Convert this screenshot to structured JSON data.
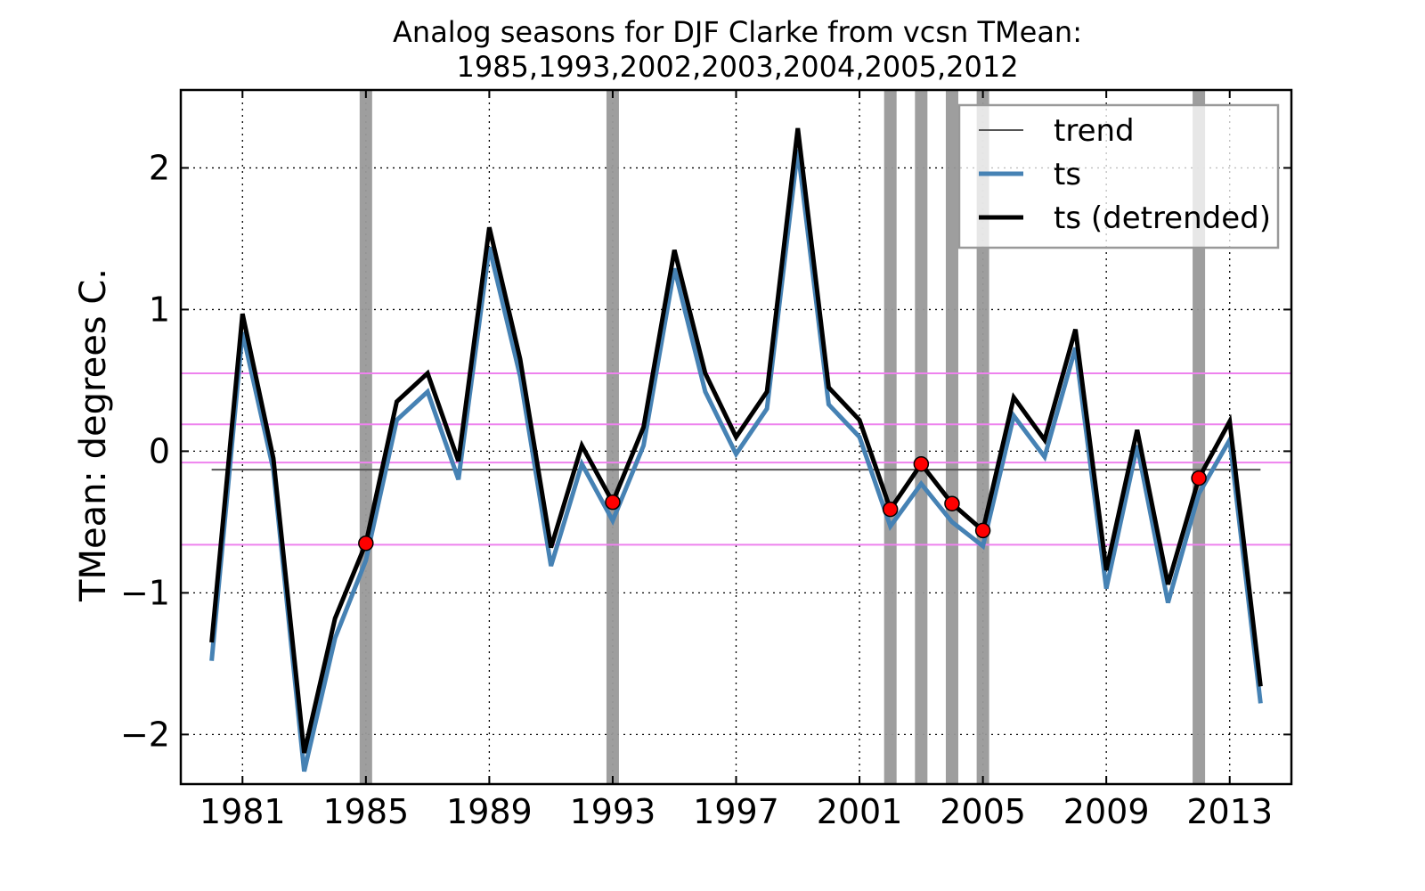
{
  "chart_data": {
    "type": "line",
    "title": "Analog seasons for DJF Clarke from vcsn TMean:",
    "subtitle": "1985,1993,2002,2003,2004,2005,2012",
    "xlabel": "",
    "ylabel": "TMean: degrees C.",
    "xlim": [
      1979.0,
      2015.0
    ],
    "ylim": [
      -2.35,
      2.55
    ],
    "xticks": [
      1981,
      1985,
      1989,
      1993,
      1997,
      2001,
      2005,
      2009,
      2013
    ],
    "xtick_labels": [
      "1981",
      "1985",
      "1989",
      "1993",
      "1997",
      "2001",
      "2005",
      "2009",
      "2013"
    ],
    "yticks": [
      -2,
      -1,
      0,
      1,
      2
    ],
    "ytick_labels": [
      "−2",
      "−1",
      "0",
      "1",
      "2"
    ],
    "grid": true,
    "legend": "top-right",
    "x": [
      1980,
      1981,
      1982,
      1983,
      1984,
      1985,
      1986,
      1987,
      1988,
      1989,
      1990,
      1991,
      1992,
      1993,
      1994,
      1995,
      1996,
      1997,
      1998,
      1999,
      2000,
      2001,
      2002,
      2003,
      2004,
      2005,
      2006,
      2007,
      2008,
      2009,
      2010,
      2011,
      2012,
      2013,
      2014
    ],
    "series": [
      {
        "name": "trend",
        "color": "#555555",
        "x": [
          1980,
          2014
        ],
        "values": [
          -0.13,
          -0.13
        ]
      },
      {
        "name": "ts",
        "color": "#4682b4",
        "values": [
          -1.48,
          0.84,
          -0.13,
          -2.26,
          -1.32,
          -0.77,
          0.22,
          0.42,
          -0.2,
          1.44,
          0.53,
          -0.81,
          -0.09,
          -0.49,
          0.04,
          1.29,
          0.42,
          -0.02,
          0.3,
          2.13,
          0.33,
          0.1,
          -0.53,
          -0.23,
          -0.5,
          -0.67,
          0.25,
          -0.04,
          0.73,
          -0.97,
          0.04,
          -1.07,
          -0.3,
          0.08,
          -1.78
        ]
      },
      {
        "name": "ts (detrended)",
        "color": "#000000",
        "values": [
          -1.35,
          0.97,
          -0.05,
          -2.13,
          -1.18,
          -0.65,
          0.35,
          0.55,
          -0.07,
          1.58,
          0.65,
          -0.68,
          0.04,
          -0.36,
          0.17,
          1.42,
          0.55,
          0.1,
          0.42,
          2.28,
          0.45,
          0.22,
          -0.41,
          -0.09,
          -0.37,
          -0.56,
          0.38,
          0.08,
          0.86,
          -0.84,
          0.15,
          -0.94,
          -0.19,
          0.21,
          -1.66
        ]
      }
    ],
    "analog_years": [
      1985,
      1993,
      2002,
      2003,
      2004,
      2005,
      2012
    ],
    "analog_highlight_color": "#999999",
    "analog_marker_color": "#ff0000",
    "reference_lines": {
      "color": "#ee82ee",
      "values": [
        0.55,
        0.19,
        -0.08,
        -0.66
      ]
    },
    "legend_entries": [
      "trend",
      "ts",
      "ts (detrended)"
    ]
  }
}
